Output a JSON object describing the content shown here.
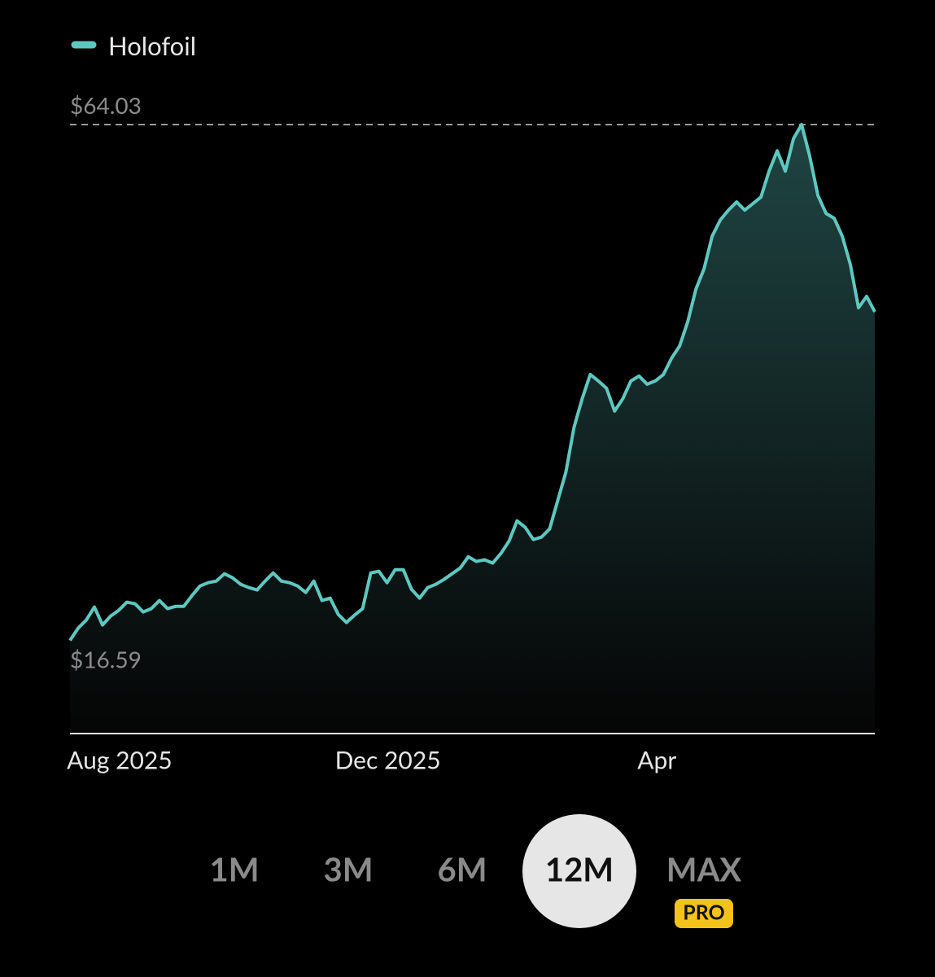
{
  "chart_data": {
    "type": "area-line",
    "series": [
      {
        "name": "Holofoil",
        "color": "#5ec8c0",
        "values": [
          16.59,
          17.71,
          18.46,
          19.66,
          18.01,
          18.83,
          19.36,
          20.11,
          19.96,
          19.21,
          19.51,
          20.26,
          19.51,
          19.73,
          19.73,
          20.7,
          21.6,
          21.9,
          22.05,
          22.72,
          22.35,
          21.75,
          21.45,
          21.23,
          22.05,
          22.8,
          22.05,
          21.9,
          21.6,
          21.0,
          22.05,
          20.26,
          20.48,
          18.98,
          18.24,
          18.91,
          19.51,
          22.8,
          22.95,
          21.9,
          23.1,
          23.1,
          21.3,
          20.48,
          21.45,
          21.75,
          22.2,
          22.72,
          23.25,
          24.29,
          23.85,
          24.0,
          23.7,
          24.59,
          25.72,
          27.59,
          26.99,
          25.87,
          26.09,
          26.84,
          29.46,
          32.07,
          36.19,
          38.81,
          41.05,
          40.45,
          39.78,
          37.68,
          38.81,
          40.45,
          40.9,
          40.15,
          40.45,
          41.05,
          42.55,
          43.67,
          45.91,
          48.9,
          50.77,
          53.77,
          55.26,
          56.16,
          56.91,
          56.16,
          56.76,
          57.36,
          59.75,
          61.62,
          59.75,
          62.74,
          64.03,
          61.1,
          57.51,
          55.86,
          55.41,
          53.77,
          51.15,
          47.18,
          48.23,
          46.81
        ]
      }
    ],
    "xlim": [
      0,
      99
    ],
    "xticks": [
      {
        "value": 6.1,
        "label": "Aug 2025"
      },
      {
        "value": 39.1,
        "label": "Dec 2025"
      },
      {
        "value": 72.2,
        "label": "Apr"
      }
    ],
    "ylim": [
      8.1,
      66.5
    ],
    "yticks": [
      {
        "value": 16.59,
        "label": "$16.59"
      },
      {
        "value": 64.03,
        "label": "$64.03"
      }
    ],
    "grid": true
  },
  "range_buttons": [
    "1M",
    "3M",
    "6M",
    "12M",
    "MAX"
  ],
  "badge": "PRO"
}
